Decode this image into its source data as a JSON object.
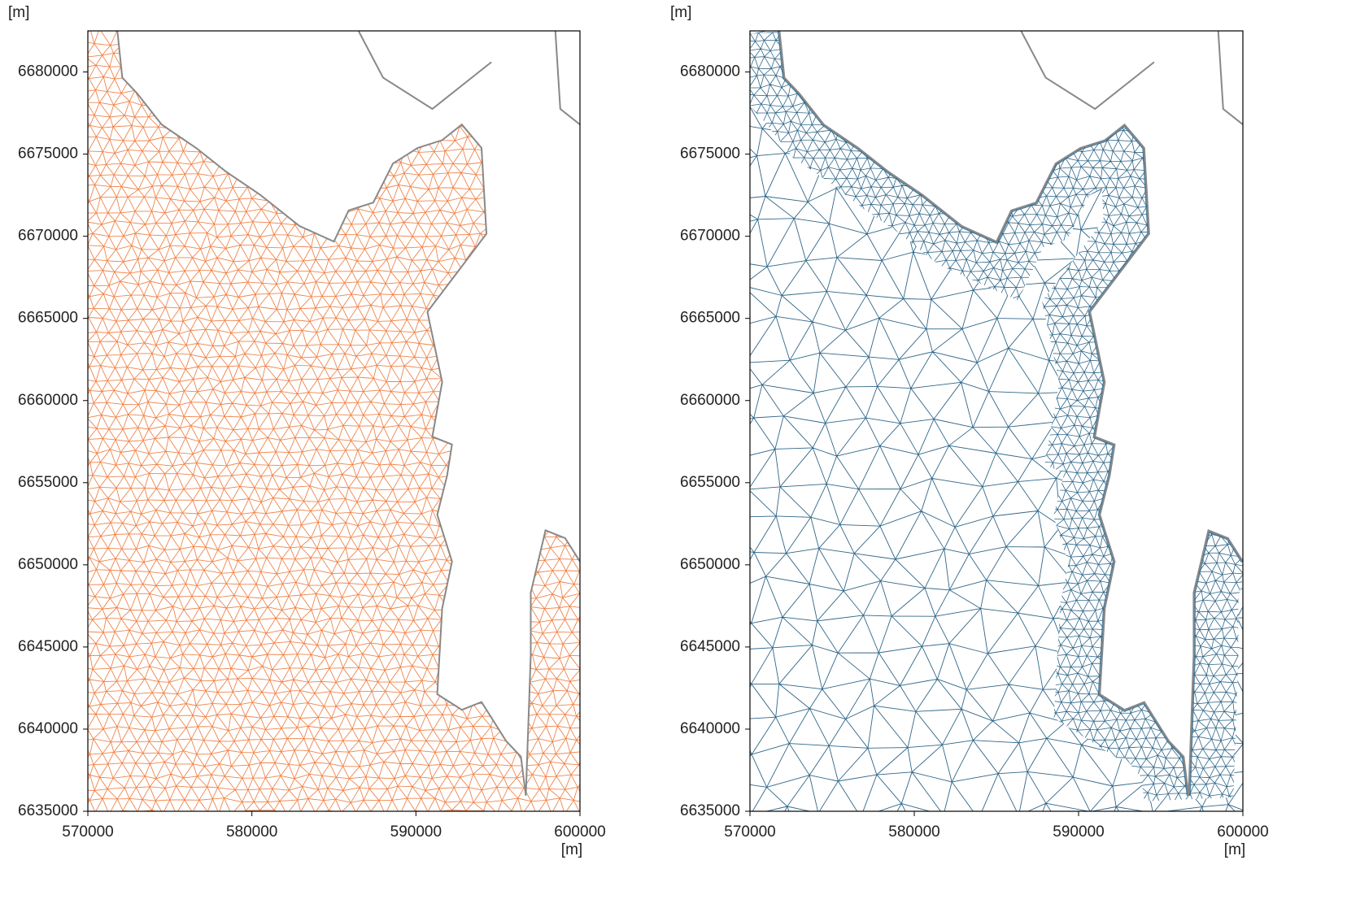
{
  "chart_data": [
    {
      "type": "mesh",
      "xlabel": "[m]",
      "ylabel": "[m]",
      "color": "#f0844a",
      "xlim": [
        570000,
        600000
      ],
      "ylim": [
        6635000,
        6682500
      ],
      "xticks": [
        570000,
        580000,
        590000,
        600000
      ],
      "yticks": [
        6635000,
        6640000,
        6645000,
        6650000,
        6655000,
        6660000,
        6665000,
        6670000,
        6675000,
        6680000
      ]
    },
    {
      "type": "mesh",
      "xlabel": "[m]",
      "ylabel": "[m]",
      "color": "#2f6688",
      "xlim": [
        570000,
        600000
      ],
      "ylim": [
        6635000,
        6682500
      ],
      "xticks": [
        570000,
        580000,
        590000,
        600000
      ],
      "yticks": [
        6635000,
        6640000,
        6645000,
        6650000,
        6655000,
        6660000,
        6665000,
        6670000,
        6675000,
        6680000
      ]
    }
  ]
}
